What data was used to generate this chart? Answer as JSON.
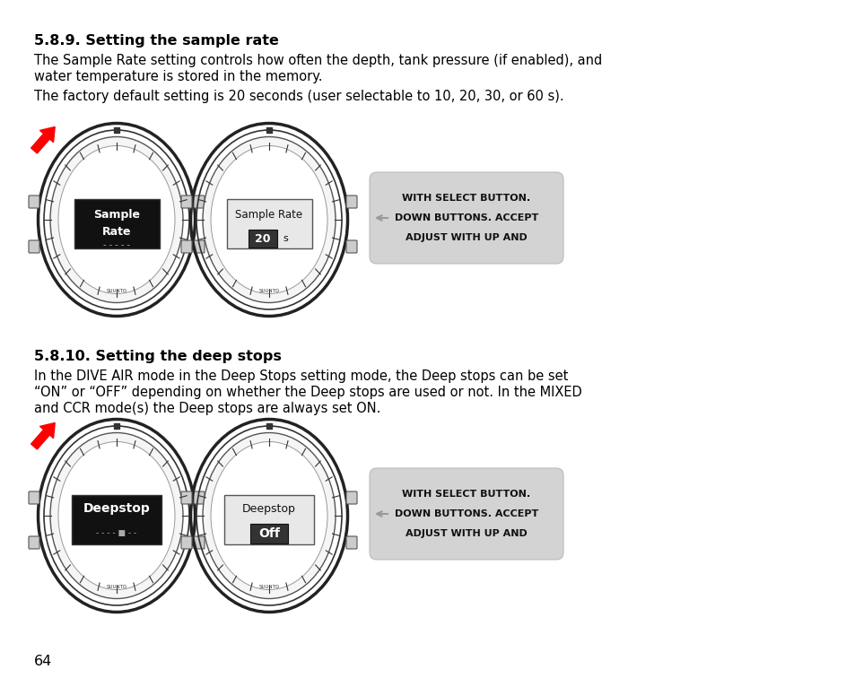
{
  "title1": "5.8.9. Setting the sample rate",
  "title1_bold": true,
  "body1_line1": "The Sample Rate setting controls how often the depth, tank pressure (if enabled), and",
  "body1_line2": "water temperature is stored in the memory.",
  "body1_line3": "The factory default setting is 20 seconds (user selectable to 10, 20, 30, or 60 s).",
  "title2": "5.8.10. Setting the deep stops",
  "title2_bold": true,
  "body2_line1": "In the DIVE AIR mode in the Deep Stops setting mode, the Deep stops can be set",
  "body2_line2": "“ON” or “OFF” depending on whether the Deep stops are used or not. In the MIXED",
  "body2_line3": "and CCR mode(s) the Deep stops are always set ON.",
  "callout1_line1": "ADJUST WITH UP AND",
  "callout1_line2": "DOWN BUTTONS. ACCEPT",
  "callout1_line3": "WITH SELECT BUTTON.",
  "callout2_line1": "ADJUST WITH UP AND",
  "callout2_line2": "DOWN BUTTONS. ACCEPT",
  "callout2_line3": "WITH SELECT BUTTON.",
  "page_number": "64",
  "bg_color": "#ffffff",
  "text_color": "#000000",
  "callout_bg": "#d8d8d8",
  "watch1_label1": "Sample",
  "watch1_label2": "Rate",
  "watch2_label1": "Sample Rate",
  "watch2_label2": "20",
  "watch2_label3": "s",
  "watch3_label1": "Deepstop",
  "watch4_label1": "Deepstop",
  "watch4_label2": "Off"
}
